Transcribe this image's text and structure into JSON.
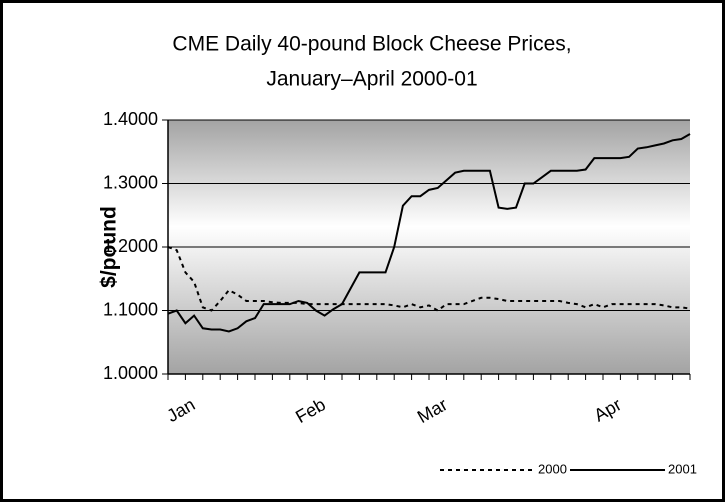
{
  "chart_data": {
    "type": "line",
    "title": "CME Daily 40-pound Block Cheese Prices,",
    "subtitle": "January–April 2000-01",
    "y_label": "$/pound",
    "categories": [
      null,
      null,
      null,
      "Jan",
      null,
      null,
      null,
      null,
      null,
      null,
      null,
      null,
      null,
      null,
      null,
      null,
      null,
      null,
      "Feb",
      null,
      null,
      null,
      null,
      null,
      null,
      null,
      null,
      null,
      null,
      null,
      null,
      null,
      "Mar",
      null,
      null,
      null,
      null,
      null,
      null,
      null,
      null,
      null,
      null,
      null,
      null,
      null,
      null,
      null,
      null,
      null,
      null,
      null,
      "Apr",
      null,
      null,
      null,
      null,
      null,
      null,
      null,
      null
    ],
    "series": [
      {
        "name": "2000",
        "color": "#000000",
        "dash": true,
        "values": [
          1.2,
          1.195,
          1.16,
          1.145,
          1.105,
          1.1,
          1.115,
          1.132,
          1.125,
          1.115,
          1.115,
          1.115,
          1.113,
          1.112,
          1.112,
          1.112,
          1.11,
          1.11,
          1.11,
          1.11,
          1.11,
          1.11,
          1.11,
          1.11,
          1.11,
          1.11,
          1.108,
          1.105,
          1.11,
          1.105,
          1.108,
          1.1,
          1.11,
          1.11,
          1.11,
          1.115,
          1.12,
          1.12,
          1.118,
          1.115,
          1.115,
          1.115,
          1.115,
          1.115,
          1.115,
          1.115,
          1.112,
          1.11,
          1.105,
          1.11,
          1.105,
          1.11,
          1.11,
          1.11,
          1.11,
          1.11,
          1.11,
          1.108,
          1.105,
          1.105,
          1.103
        ]
      },
      {
        "name": "2001",
        "color": "#000000",
        "dash": false,
        "values": [
          1.095,
          1.1,
          1.08,
          1.092,
          1.072,
          1.07,
          1.07,
          1.067,
          1.072,
          1.083,
          1.088,
          1.11,
          1.11,
          1.11,
          1.11,
          1.115,
          1.112,
          1.1,
          1.092,
          1.102,
          1.11,
          1.135,
          1.16,
          1.16,
          1.16,
          1.16,
          1.2,
          1.265,
          1.28,
          1.28,
          1.29,
          1.293,
          1.305,
          1.317,
          1.32,
          1.32,
          1.32,
          1.32,
          1.262,
          1.26,
          1.262,
          1.3,
          1.3,
          1.31,
          1.32,
          1.32,
          1.32,
          1.32,
          1.322,
          1.34,
          1.34,
          1.34,
          1.34,
          1.342,
          1.355,
          1.357,
          1.36,
          1.363,
          1.368,
          1.37,
          1.378
        ]
      }
    ],
    "ylim": [
      1.0,
      1.4
    ],
    "yticks": [
      {
        "value": 1.0,
        "label": "1.0000"
      },
      {
        "value": 1.1,
        "label": "1.1000"
      },
      {
        "value": 1.2,
        "label": "1.2000"
      },
      {
        "value": 1.3,
        "label": "1.3000"
      },
      {
        "value": 1.4,
        "label": "1.4000"
      }
    ],
    "grid": true,
    "legend": "lower right"
  }
}
